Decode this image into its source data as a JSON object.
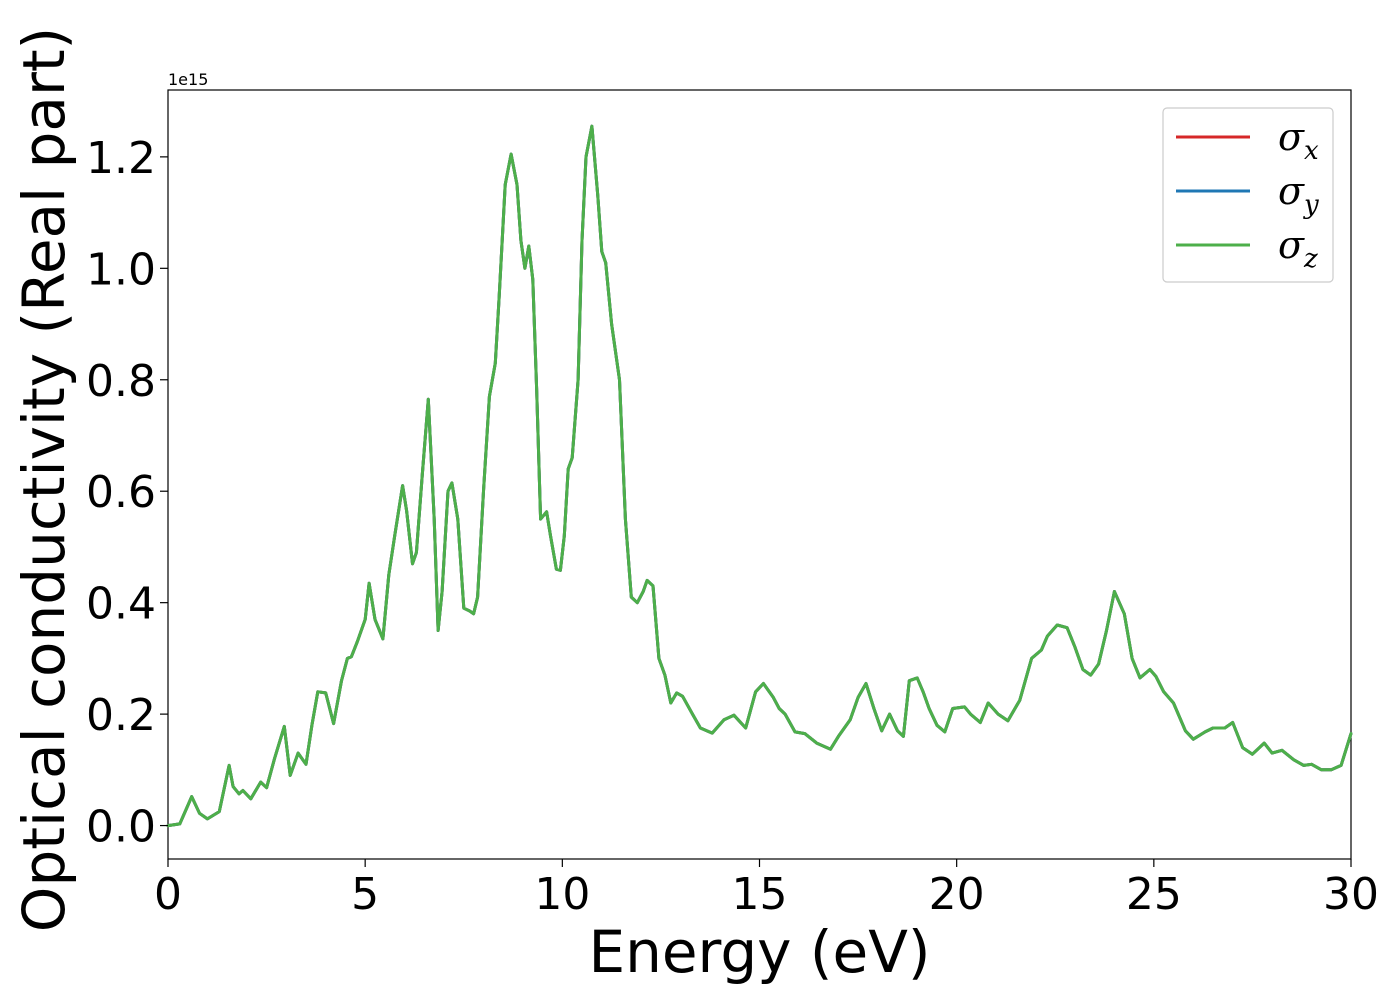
{
  "chart_data": {
    "type": "line",
    "title": "",
    "xlabel": "Energy (eV)",
    "ylabel": "Optical conductivity (Real part)",
    "y_offset_label": "1e15",
    "y_scale": 1000000000000000.0,
    "xlim": [
      0,
      30
    ],
    "ylim": [
      -0.06,
      1.32
    ],
    "xticks": [
      0,
      5,
      10,
      15,
      20,
      25,
      30
    ],
    "xtick_labels": [
      "0",
      "5",
      "10",
      "15",
      "20",
      "25",
      "30"
    ],
    "yticks": [
      0.0,
      0.2,
      0.4,
      0.6,
      0.8,
      1.0,
      1.2
    ],
    "ytick_labels": [
      "0.0",
      "0.2",
      "0.4",
      "0.6",
      "0.8",
      "1.0",
      "1.2"
    ],
    "grid": false,
    "legend_position": "top-right",
    "x": [
      0,
      0.3,
      0.6,
      0.8,
      1.0,
      1.3,
      1.55,
      1.65,
      1.8,
      1.9,
      2.1,
      2.35,
      2.5,
      2.7,
      2.95,
      3.1,
      3.3,
      3.5,
      3.65,
      3.8,
      4.0,
      4.2,
      4.4,
      4.55,
      4.65,
      4.8,
      5.0,
      5.1,
      5.25,
      5.45,
      5.6,
      5.75,
      5.95,
      6.05,
      6.2,
      6.3,
      6.45,
      6.6,
      6.75,
      6.85,
      6.95,
      7.1,
      7.2,
      7.35,
      7.5,
      7.65,
      7.75,
      7.85,
      8.0,
      8.15,
      8.3,
      8.4,
      8.55,
      8.7,
      8.85,
      8.95,
      9.05,
      9.15,
      9.25,
      9.35,
      9.45,
      9.6,
      9.7,
      9.85,
      9.95,
      10.05,
      10.15,
      10.25,
      10.4,
      10.5,
      10.6,
      10.75,
      10.9,
      11.0,
      11.1,
      11.25,
      11.45,
      11.6,
      11.75,
      11.9,
      12.05,
      12.15,
      12.3,
      12.45,
      12.6,
      12.75,
      12.9,
      13.05,
      13.3,
      13.5,
      13.8,
      14.1,
      14.35,
      14.65,
      14.9,
      15.1,
      15.35,
      15.5,
      15.65,
      15.9,
      16.15,
      16.45,
      16.8,
      17.0,
      17.3,
      17.5,
      17.7,
      17.9,
      18.1,
      18.3,
      18.5,
      18.65,
      18.8,
      19.0,
      19.15,
      19.3,
      19.5,
      19.7,
      19.9,
      20.2,
      20.35,
      20.6,
      20.8,
      21.05,
      21.3,
      21.6,
      21.9,
      22.15,
      22.3,
      22.55,
      22.8,
      23.0,
      23.2,
      23.4,
      23.6,
      23.8,
      24.0,
      24.25,
      24.45,
      24.65,
      24.9,
      25.05,
      25.25,
      25.5,
      25.8,
      26.0,
      26.3,
      26.5,
      26.8,
      27.0,
      27.25,
      27.5,
      27.8,
      28.0,
      28.25,
      28.55,
      28.8,
      29.0,
      29.25,
      29.5,
      29.75,
      30.0
    ],
    "series": [
      {
        "name": "σx",
        "color": "#d62728",
        "values": [
          0,
          0.003,
          0.052,
          0.022,
          0.012,
          0.025,
          0.108,
          0.07,
          0.057,
          0.063,
          0.048,
          0.078,
          0.068,
          0.12,
          0.178,
          0.09,
          0.13,
          0.11,
          0.18,
          0.24,
          0.238,
          0.183,
          0.26,
          0.3,
          0.303,
          0.33,
          0.37,
          0.435,
          0.37,
          0.335,
          0.45,
          0.52,
          0.61,
          0.565,
          0.47,
          0.49,
          0.63,
          0.765,
          0.55,
          0.35,
          0.42,
          0.6,
          0.615,
          0.55,
          0.39,
          0.385,
          0.38,
          0.41,
          0.6,
          0.77,
          0.83,
          0.95,
          1.15,
          1.205,
          1.15,
          1.05,
          1.0,
          1.04,
          0.98,
          0.78,
          0.55,
          0.563,
          0.52,
          0.46,
          0.458,
          0.52,
          0.64,
          0.66,
          0.8,
          1.05,
          1.2,
          1.255,
          1.13,
          1.03,
          1.01,
          0.9,
          0.8,
          0.55,
          0.41,
          0.4,
          0.42,
          0.44,
          0.43,
          0.3,
          0.27,
          0.22,
          0.238,
          0.232,
          0.2,
          0.175,
          0.166,
          0.19,
          0.198,
          0.175,
          0.24,
          0.255,
          0.23,
          0.21,
          0.2,
          0.168,
          0.165,
          0.148,
          0.137,
          0.16,
          0.19,
          0.23,
          0.255,
          0.21,
          0.17,
          0.2,
          0.17,
          0.16,
          0.26,
          0.265,
          0.24,
          0.21,
          0.18,
          0.168,
          0.21,
          0.213,
          0.2,
          0.185,
          0.22,
          0.2,
          0.188,
          0.225,
          0.3,
          0.315,
          0.34,
          0.36,
          0.355,
          0.32,
          0.28,
          0.27,
          0.29,
          0.35,
          0.42,
          0.38,
          0.3,
          0.265,
          0.28,
          0.268,
          0.24,
          0.22,
          0.17,
          0.155,
          0.168,
          0.175,
          0.175,
          0.185,
          0.14,
          0.128,
          0.148,
          0.13,
          0.135,
          0.118,
          0.108,
          0.11,
          0.1,
          0.1,
          0.108,
          0.165
        ]
      },
      {
        "name": "σy",
        "color": "#1f77b4",
        "values": [
          0,
          0.003,
          0.052,
          0.022,
          0.012,
          0.025,
          0.108,
          0.07,
          0.057,
          0.063,
          0.048,
          0.078,
          0.068,
          0.12,
          0.178,
          0.09,
          0.13,
          0.11,
          0.18,
          0.24,
          0.238,
          0.183,
          0.26,
          0.3,
          0.303,
          0.33,
          0.37,
          0.435,
          0.37,
          0.335,
          0.45,
          0.52,
          0.61,
          0.565,
          0.47,
          0.49,
          0.63,
          0.765,
          0.55,
          0.35,
          0.42,
          0.6,
          0.615,
          0.55,
          0.39,
          0.385,
          0.38,
          0.41,
          0.6,
          0.77,
          0.83,
          0.95,
          1.15,
          1.205,
          1.15,
          1.05,
          1.0,
          1.04,
          0.98,
          0.78,
          0.55,
          0.563,
          0.52,
          0.46,
          0.458,
          0.52,
          0.64,
          0.66,
          0.8,
          1.05,
          1.2,
          1.255,
          1.13,
          1.03,
          1.01,
          0.9,
          0.8,
          0.55,
          0.41,
          0.4,
          0.42,
          0.44,
          0.43,
          0.3,
          0.27,
          0.22,
          0.238,
          0.232,
          0.2,
          0.175,
          0.166,
          0.19,
          0.198,
          0.175,
          0.24,
          0.255,
          0.23,
          0.21,
          0.2,
          0.168,
          0.165,
          0.148,
          0.137,
          0.16,
          0.19,
          0.23,
          0.255,
          0.21,
          0.17,
          0.2,
          0.17,
          0.16,
          0.26,
          0.265,
          0.24,
          0.21,
          0.18,
          0.168,
          0.21,
          0.213,
          0.2,
          0.185,
          0.22,
          0.2,
          0.188,
          0.225,
          0.3,
          0.315,
          0.34,
          0.36,
          0.355,
          0.32,
          0.28,
          0.27,
          0.29,
          0.35,
          0.42,
          0.38,
          0.3,
          0.265,
          0.28,
          0.268,
          0.24,
          0.22,
          0.17,
          0.155,
          0.168,
          0.175,
          0.175,
          0.185,
          0.14,
          0.128,
          0.148,
          0.13,
          0.135,
          0.118,
          0.108,
          0.11,
          0.1,
          0.1,
          0.108,
          0.165
        ]
      },
      {
        "name": "σz",
        "color": "#4daf4a",
        "values": [
          0,
          0.003,
          0.052,
          0.022,
          0.012,
          0.025,
          0.108,
          0.07,
          0.057,
          0.063,
          0.048,
          0.078,
          0.068,
          0.12,
          0.178,
          0.09,
          0.13,
          0.11,
          0.18,
          0.24,
          0.238,
          0.183,
          0.26,
          0.3,
          0.303,
          0.33,
          0.37,
          0.435,
          0.37,
          0.335,
          0.45,
          0.52,
          0.61,
          0.565,
          0.47,
          0.49,
          0.63,
          0.765,
          0.55,
          0.35,
          0.42,
          0.6,
          0.615,
          0.55,
          0.39,
          0.385,
          0.38,
          0.41,
          0.6,
          0.77,
          0.83,
          0.95,
          1.15,
          1.205,
          1.15,
          1.05,
          1.0,
          1.04,
          0.98,
          0.78,
          0.55,
          0.563,
          0.52,
          0.46,
          0.458,
          0.52,
          0.64,
          0.66,
          0.8,
          1.05,
          1.2,
          1.255,
          1.13,
          1.03,
          1.01,
          0.9,
          0.8,
          0.55,
          0.41,
          0.4,
          0.42,
          0.44,
          0.43,
          0.3,
          0.27,
          0.22,
          0.238,
          0.232,
          0.2,
          0.175,
          0.166,
          0.19,
          0.198,
          0.175,
          0.24,
          0.255,
          0.23,
          0.21,
          0.2,
          0.168,
          0.165,
          0.148,
          0.137,
          0.16,
          0.19,
          0.23,
          0.255,
          0.21,
          0.17,
          0.2,
          0.17,
          0.16,
          0.26,
          0.265,
          0.24,
          0.21,
          0.18,
          0.168,
          0.21,
          0.213,
          0.2,
          0.185,
          0.22,
          0.2,
          0.188,
          0.225,
          0.3,
          0.315,
          0.34,
          0.36,
          0.355,
          0.32,
          0.28,
          0.27,
          0.29,
          0.35,
          0.42,
          0.38,
          0.3,
          0.265,
          0.28,
          0.268,
          0.24,
          0.22,
          0.17,
          0.155,
          0.168,
          0.175,
          0.175,
          0.185,
          0.14,
          0.128,
          0.148,
          0.13,
          0.135,
          0.118,
          0.108,
          0.11,
          0.1,
          0.1,
          0.108,
          0.165
        ]
      }
    ],
    "legend": [
      {
        "symbol": "σ",
        "sub": "x",
        "color": "#d62728"
      },
      {
        "symbol": "σ",
        "sub": "y",
        "color": "#1f77b4"
      },
      {
        "symbol": "σ",
        "sub": "z",
        "color": "#4daf4a"
      }
    ]
  }
}
